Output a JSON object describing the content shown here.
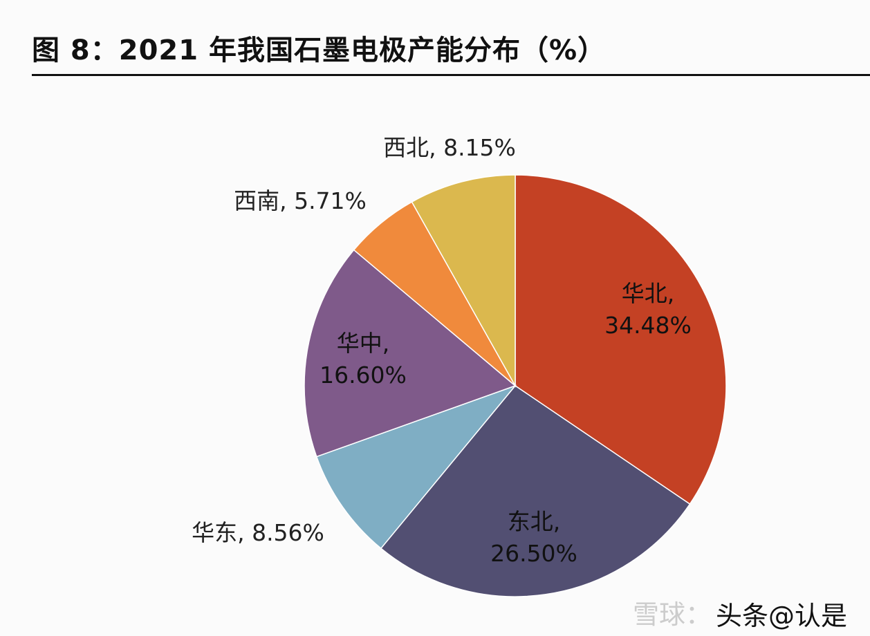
{
  "title": "图 8：2021 年我国石墨电极产能分布（%）",
  "chart_data": {
    "type": "pie",
    "title": "图 8：2021 年我国石墨电极产能分布（%）",
    "start": "12 o'clock, clockwise",
    "slices": [
      {
        "name": "华北",
        "value": 34.48,
        "label": "华北,",
        "pct": "34.48%",
        "color": "#c44124"
      },
      {
        "name": "东北",
        "value": 26.5,
        "label": "东北,",
        "pct": "26.50%",
        "color": "#524f72"
      },
      {
        "name": "华东",
        "value": 8.56,
        "label": "华东, 8.56%",
        "color": "#7faec4"
      },
      {
        "name": "华中",
        "value": 16.6,
        "label": "华中,",
        "pct": "16.60%",
        "color": "#7f5a8a"
      },
      {
        "name": "西南",
        "value": 5.71,
        "label": "西南, 5.71%",
        "color": "#f08a3c"
      },
      {
        "name": "西北",
        "value": 8.15,
        "label": "西北, 8.15%",
        "color": "#dbb84e"
      }
    ]
  },
  "watermark": {
    "a": "雪球：",
    "b": "头条@认是"
  }
}
